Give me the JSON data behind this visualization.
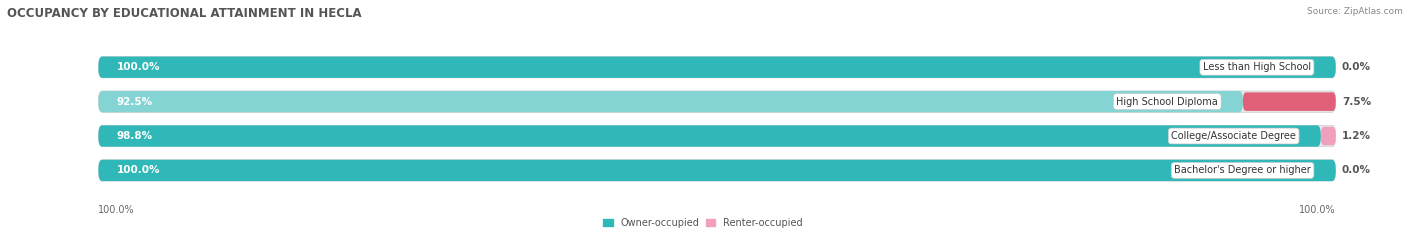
{
  "title": "OCCUPANCY BY EDUCATIONAL ATTAINMENT IN HECLA",
  "source": "Source: ZipAtlas.com",
  "categories": [
    "Less than High School",
    "High School Diploma",
    "College/Associate Degree",
    "Bachelor's Degree or higher"
  ],
  "owner_pct": [
    100.0,
    92.5,
    98.8,
    100.0
  ],
  "renter_pct": [
    0.0,
    7.5,
    1.2,
    0.0
  ],
  "owner_colors": [
    "#30b8b8",
    "#85d4d4",
    "#30b8b8",
    "#30b8b8"
  ],
  "renter_colors": [
    "#f0a0bc",
    "#e0607a",
    "#f0a0bc",
    "#f0a0bc"
  ],
  "bg_color": "#ffffff",
  "row_bg_color": "#e8e8e8",
  "bar_bg_color": "#dcdcdc",
  "title_fontsize": 8.5,
  "label_fontsize": 7.5,
  "cat_fontsize": 7.0,
  "tick_fontsize": 7.0,
  "source_fontsize": 6.5,
  "bar_height": 0.62,
  "figsize": [
    14.06,
    2.33
  ],
  "dpi": 100
}
